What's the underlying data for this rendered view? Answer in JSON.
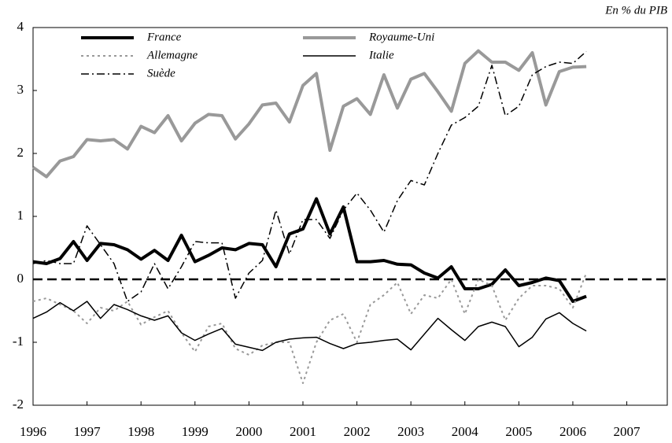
{
  "chart_data": {
    "type": "line",
    "unit_label": "En % du PIB",
    "x": [
      1996,
      1996.25,
      1996.5,
      1996.75,
      1997,
      1997.25,
      1997.5,
      1997.75,
      1998,
      1998.25,
      1998.5,
      1998.75,
      1999,
      1999.25,
      1999.5,
      1999.75,
      2000,
      2000.25,
      2000.5,
      2000.75,
      2001,
      2001.25,
      2001.5,
      2001.75,
      2002,
      2002.25,
      2002.5,
      2002.75,
      2003,
      2003.25,
      2003.5,
      2003.75,
      2004,
      2004.25,
      2004.5,
      2004.75,
      2005,
      2005.25,
      2005.5,
      2005.75,
      2006,
      2006.25
    ],
    "series": [
      {
        "name": "France",
        "color": "#000000",
        "width": 4,
        "dash": "none",
        "values": [
          0.28,
          0.25,
          0.33,
          0.6,
          0.3,
          0.57,
          0.55,
          0.47,
          0.32,
          0.46,
          0.3,
          0.7,
          0.28,
          0.38,
          0.5,
          0.47,
          0.57,
          0.55,
          0.2,
          0.72,
          0.8,
          1.28,
          0.72,
          1.15,
          0.28,
          0.28,
          0.3,
          0.24,
          0.23,
          0.1,
          0.02,
          0.2,
          -0.15,
          -0.15,
          -0.08,
          0.15,
          -0.1,
          -0.05,
          0.02,
          -0.02,
          -0.35,
          -0.27
        ]
      },
      {
        "name": "Royaume-Uni",
        "color": "#999999",
        "width": 4,
        "dash": "none",
        "values": [
          1.78,
          1.63,
          1.88,
          1.95,
          2.22,
          2.2,
          2.22,
          2.07,
          2.43,
          2.33,
          2.6,
          2.2,
          2.48,
          2.62,
          2.6,
          2.23,
          2.47,
          2.77,
          2.8,
          2.5,
          3.08,
          3.27,
          2.05,
          2.75,
          2.87,
          2.62,
          3.25,
          2.72,
          3.18,
          3.27,
          2.98,
          2.67,
          3.43,
          3.63,
          3.45,
          3.45,
          3.32,
          3.6,
          2.77,
          3.3,
          3.37,
          3.38
        ]
      },
      {
        "name": "Allemagne",
        "color": "#999999",
        "width": 2,
        "dash": "3 4",
        "values": [
          -0.35,
          -0.3,
          -0.4,
          -0.5,
          -0.7,
          -0.45,
          -0.5,
          -0.35,
          -0.72,
          -0.6,
          -0.5,
          -0.85,
          -1.15,
          -0.75,
          -0.7,
          -1.1,
          -1.2,
          -1.05,
          -1.0,
          -1.0,
          -1.65,
          -1.0,
          -0.65,
          -0.55,
          -1.0,
          -0.4,
          -0.25,
          -0.05,
          -0.55,
          -0.25,
          -0.3,
          0.0,
          -0.55,
          0.0,
          -0.1,
          -0.65,
          -0.3,
          -0.1,
          -0.1,
          -0.15,
          -0.45,
          0.1
        ]
      },
      {
        "name": "Italie",
        "color": "#000000",
        "width": 1.5,
        "dash": "none",
        "values": [
          -0.62,
          -0.52,
          -0.37,
          -0.5,
          -0.35,
          -0.62,
          -0.4,
          -0.48,
          -0.58,
          -0.65,
          -0.58,
          -0.85,
          -0.97,
          -0.87,
          -0.78,
          -1.03,
          -1.08,
          -1.13,
          -1.0,
          -0.95,
          -0.93,
          -0.92,
          -1.02,
          -1.1,
          -1.02,
          -1.0,
          -0.97,
          -0.95,
          -1.12,
          -0.87,
          -0.62,
          -0.8,
          -0.97,
          -0.75,
          -0.68,
          -0.75,
          -1.07,
          -0.92,
          -0.63,
          -0.53,
          -0.7,
          -0.82
        ]
      },
      {
        "name": "Suède",
        "color": "#000000",
        "width": 1.5,
        "dash": "10 4 2 4",
        "values": [
          0.25,
          0.3,
          0.25,
          0.25,
          0.85,
          0.55,
          0.25,
          -0.35,
          -0.2,
          0.25,
          -0.15,
          0.2,
          0.6,
          0.58,
          0.58,
          -0.3,
          0.1,
          0.3,
          1.1,
          0.4,
          0.95,
          0.95,
          0.65,
          1.1,
          1.37,
          1.1,
          0.75,
          1.25,
          1.57,
          1.5,
          2.0,
          2.45,
          2.57,
          2.75,
          3.4,
          2.6,
          2.75,
          3.25,
          3.38,
          3.45,
          3.43,
          3.62
        ]
      }
    ],
    "xlim": [
      1996,
      2007.75
    ],
    "xticks": [
      1996,
      1997,
      1998,
      1999,
      2000,
      2001,
      2002,
      2003,
      2004,
      2005,
      2006,
      2007
    ],
    "ylim": [
      -2,
      4
    ],
    "yticks": [
      -2,
      -1,
      0,
      1,
      2,
      3,
      4
    ],
    "zero_line": true
  }
}
